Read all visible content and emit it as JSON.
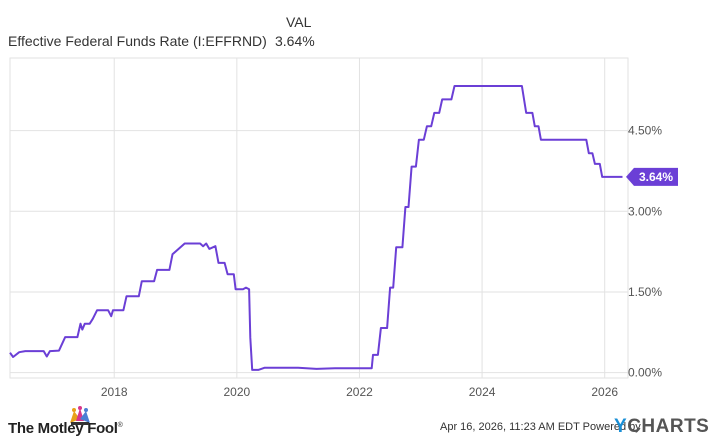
{
  "header": {
    "column_label": "VAL",
    "series_name": "Effective Federal Funds Rate (I:EFFRND)",
    "series_value": "3.64%"
  },
  "footer": {
    "date_text": "Apr 16, 2026, 11:23 AM EDT Powered by",
    "brand_left": "The Motley Fool",
    "brand_left_mark": "®",
    "brand_right_y": "Y",
    "brand_right_rest": "CHARTS"
  },
  "colors": {
    "line": "#6b3fd6",
    "grid": "#e2e2e2",
    "axis_text": "#555555"
  },
  "chart_data": {
    "type": "line",
    "series": [
      {
        "name": "Effective Federal Funds Rate (I:EFFRND)",
        "points": [
          [
            2016.3,
            0.37
          ],
          [
            2016.35,
            0.29
          ],
          [
            2016.45,
            0.38
          ],
          [
            2016.55,
            0.4
          ],
          [
            2016.7,
            0.4
          ],
          [
            2016.85,
            0.4
          ],
          [
            2016.9,
            0.3
          ],
          [
            2016.95,
            0.4
          ],
          [
            2017.1,
            0.41
          ],
          [
            2017.2,
            0.66
          ],
          [
            2017.4,
            0.66
          ],
          [
            2017.45,
            0.91
          ],
          [
            2017.48,
            0.8
          ],
          [
            2017.52,
            0.91
          ],
          [
            2017.6,
            0.91
          ],
          [
            2017.65,
            1.0
          ],
          [
            2017.72,
            1.16
          ],
          [
            2017.9,
            1.16
          ],
          [
            2017.95,
            1.05
          ],
          [
            2017.98,
            1.16
          ],
          [
            2018.15,
            1.16
          ],
          [
            2018.2,
            1.42
          ],
          [
            2018.4,
            1.42
          ],
          [
            2018.45,
            1.7
          ],
          [
            2018.65,
            1.7
          ],
          [
            2018.7,
            1.91
          ],
          [
            2018.9,
            1.91
          ],
          [
            2018.95,
            2.2
          ],
          [
            2019.15,
            2.4
          ],
          [
            2019.4,
            2.4
          ],
          [
            2019.45,
            2.35
          ],
          [
            2019.5,
            2.4
          ],
          [
            2019.55,
            2.3
          ],
          [
            2019.65,
            2.35
          ],
          [
            2019.7,
            2.04
          ],
          [
            2019.8,
            2.04
          ],
          [
            2019.85,
            1.83
          ],
          [
            2019.95,
            1.83
          ],
          [
            2019.98,
            1.55
          ],
          [
            2020.1,
            1.55
          ],
          [
            2020.15,
            1.58
          ],
          [
            2020.2,
            1.55
          ],
          [
            2020.22,
            0.65
          ],
          [
            2020.25,
            0.05
          ],
          [
            2020.35,
            0.05
          ],
          [
            2020.45,
            0.09
          ],
          [
            2020.6,
            0.09
          ],
          [
            2021.0,
            0.09
          ],
          [
            2021.3,
            0.07
          ],
          [
            2021.6,
            0.08
          ],
          [
            2021.75,
            0.08
          ],
          [
            2022.0,
            0.08
          ],
          [
            2022.2,
            0.08
          ],
          [
            2022.22,
            0.33
          ],
          [
            2022.3,
            0.33
          ],
          [
            2022.35,
            0.83
          ],
          [
            2022.45,
            0.83
          ],
          [
            2022.5,
            1.58
          ],
          [
            2022.55,
            1.58
          ],
          [
            2022.6,
            2.33
          ],
          [
            2022.7,
            2.33
          ],
          [
            2022.75,
            3.08
          ],
          [
            2022.8,
            3.08
          ],
          [
            2022.85,
            3.83
          ],
          [
            2022.92,
            3.83
          ],
          [
            2022.97,
            4.33
          ],
          [
            2023.05,
            4.33
          ],
          [
            2023.1,
            4.58
          ],
          [
            2023.17,
            4.58
          ],
          [
            2023.22,
            4.83
          ],
          [
            2023.3,
            4.83
          ],
          [
            2023.35,
            5.08
          ],
          [
            2023.5,
            5.08
          ],
          [
            2023.55,
            5.33
          ],
          [
            2024.65,
            5.33
          ],
          [
            2024.72,
            4.83
          ],
          [
            2024.82,
            4.83
          ],
          [
            2024.86,
            4.58
          ],
          [
            2024.92,
            4.58
          ],
          [
            2024.96,
            4.33
          ],
          [
            2025.7,
            4.33
          ],
          [
            2025.74,
            4.08
          ],
          [
            2025.8,
            4.08
          ],
          [
            2025.84,
            3.88
          ],
          [
            2025.92,
            3.88
          ],
          [
            2025.96,
            3.64
          ],
          [
            2026.29,
            3.64
          ]
        ]
      }
    ],
    "x_ticks": [
      2018,
      2020,
      2022,
      2024,
      2026
    ],
    "x_tick_labels": [
      "2018",
      "2020",
      "2022",
      "2024",
      "2026"
    ],
    "y_ticks": [
      0,
      1.5,
      3.0,
      4.5
    ],
    "y_tick_labels": [
      "0.00%",
      "1.50%",
      "3.00%",
      "4.50%"
    ],
    "last_value_label": "3.64%",
    "xlim": [
      2016.3,
      2026.38
    ],
    "ylim": [
      -0.1,
      5.85
    ],
    "grid": true,
    "legend": "top-left"
  }
}
